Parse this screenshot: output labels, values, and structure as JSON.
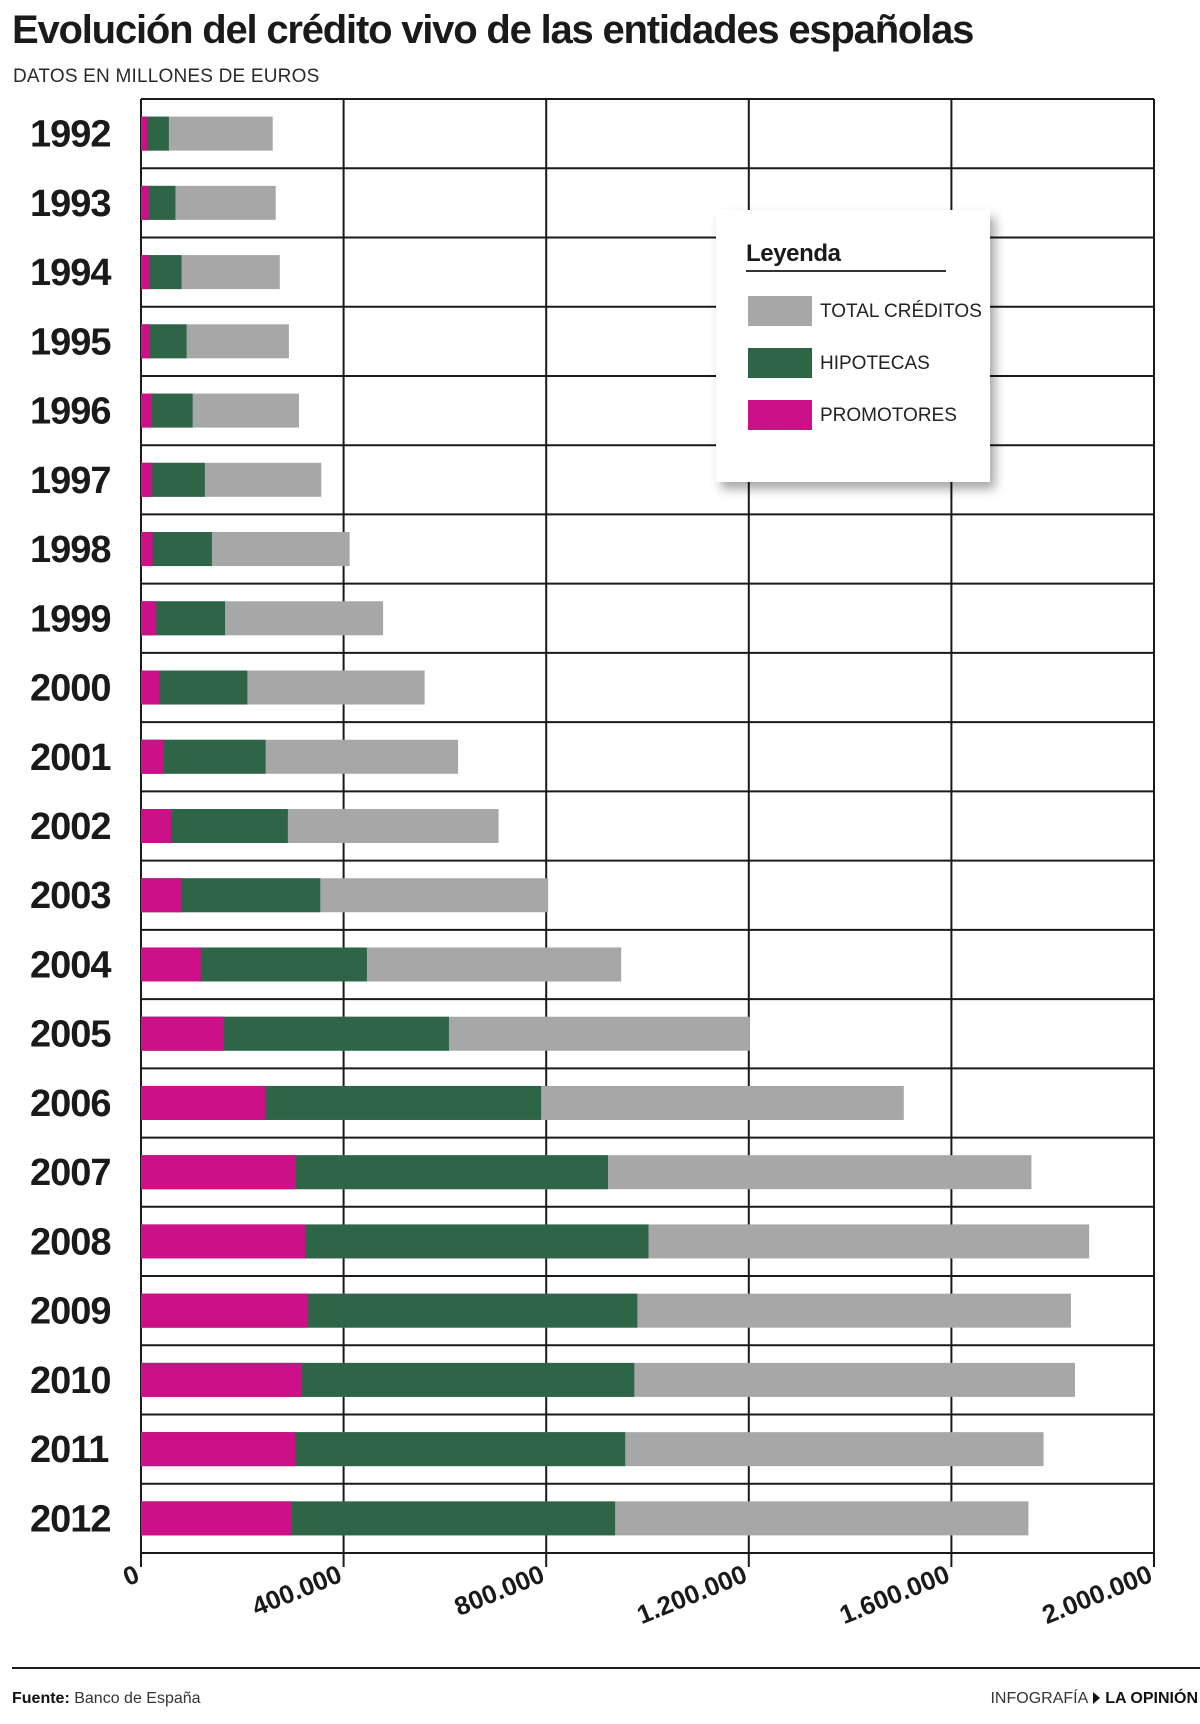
{
  "header": {
    "title": "Evolución del crédito vivo de las entidades españolas",
    "subtitle": "DATOS EN MILLONES DE EUROS"
  },
  "footer": {
    "source_label": "Fuente:",
    "source_value": "Banco de España",
    "credit_label": "INFOGRAFÍA",
    "credit_brand": "LA OPINIÓN"
  },
  "legend": {
    "title": "Leyenda",
    "items": [
      {
        "label": "TOTAL CRÉDITOS",
        "color": "#a7a7a7"
      },
      {
        "label": "HIPOTECAS",
        "color": "#2f6547"
      },
      {
        "label": "PROMOTORES",
        "color": "#cc1188"
      }
    ]
  },
  "colors": {
    "total": "#a7a7a7",
    "hipotecas": "#2f6547",
    "promotores": "#cc1188",
    "grid": "#1a1a1a"
  },
  "chart_data": {
    "type": "bar",
    "orientation": "horizontal",
    "stacked_overlay": true,
    "title": "Evolución del crédito vivo de las entidades españolas",
    "subtitle": "DATOS EN MILLONES DE EUROS",
    "categories": [
      "1992",
      "1993",
      "1994",
      "1995",
      "1996",
      "1997",
      "1998",
      "1999",
      "2000",
      "2001",
      "2002",
      "2003",
      "2004",
      "2005",
      "2006",
      "2007",
      "2008",
      "2009",
      "2010",
      "2011",
      "2012"
    ],
    "series": [
      {
        "name": "TOTAL CRÉDITOS",
        "values": [
          260000,
          266000,
          274000,
          292000,
          312000,
          356000,
          412000,
          478000,
          560000,
          626000,
          706000,
          804000,
          948000,
          1202000,
          1506000,
          1758000,
          1872000,
          1836000,
          1844000,
          1782000,
          1752000
        ]
      },
      {
        "name": "HIPOTECAS",
        "values": [
          55000,
          68000,
          80000,
          90000,
          102000,
          126000,
          140000,
          166000,
          210000,
          246000,
          290000,
          354000,
          446000,
          608000,
          790000,
          922000,
          1002000,
          980000,
          974000,
          956000,
          936000
        ]
      },
      {
        "name": "PROMOTORES",
        "values": [
          12000,
          15000,
          17000,
          18000,
          21000,
          22000,
          23000,
          30000,
          36000,
          45000,
          60000,
          80000,
          118000,
          163000,
          246000,
          306000,
          324000,
          330000,
          318000,
          304000,
          298000
        ]
      }
    ],
    "xlim": [
      0,
      2000000
    ],
    "xticks": [
      0,
      400000,
      800000,
      1200000,
      1600000,
      2000000
    ],
    "xtick_labels": [
      "0",
      "400.000",
      "800.000",
      "1.200.000",
      "1.600.000",
      "2.000.000"
    ],
    "xlabel": "",
    "ylabel": "",
    "grid": true,
    "legend_position": "top-right"
  }
}
